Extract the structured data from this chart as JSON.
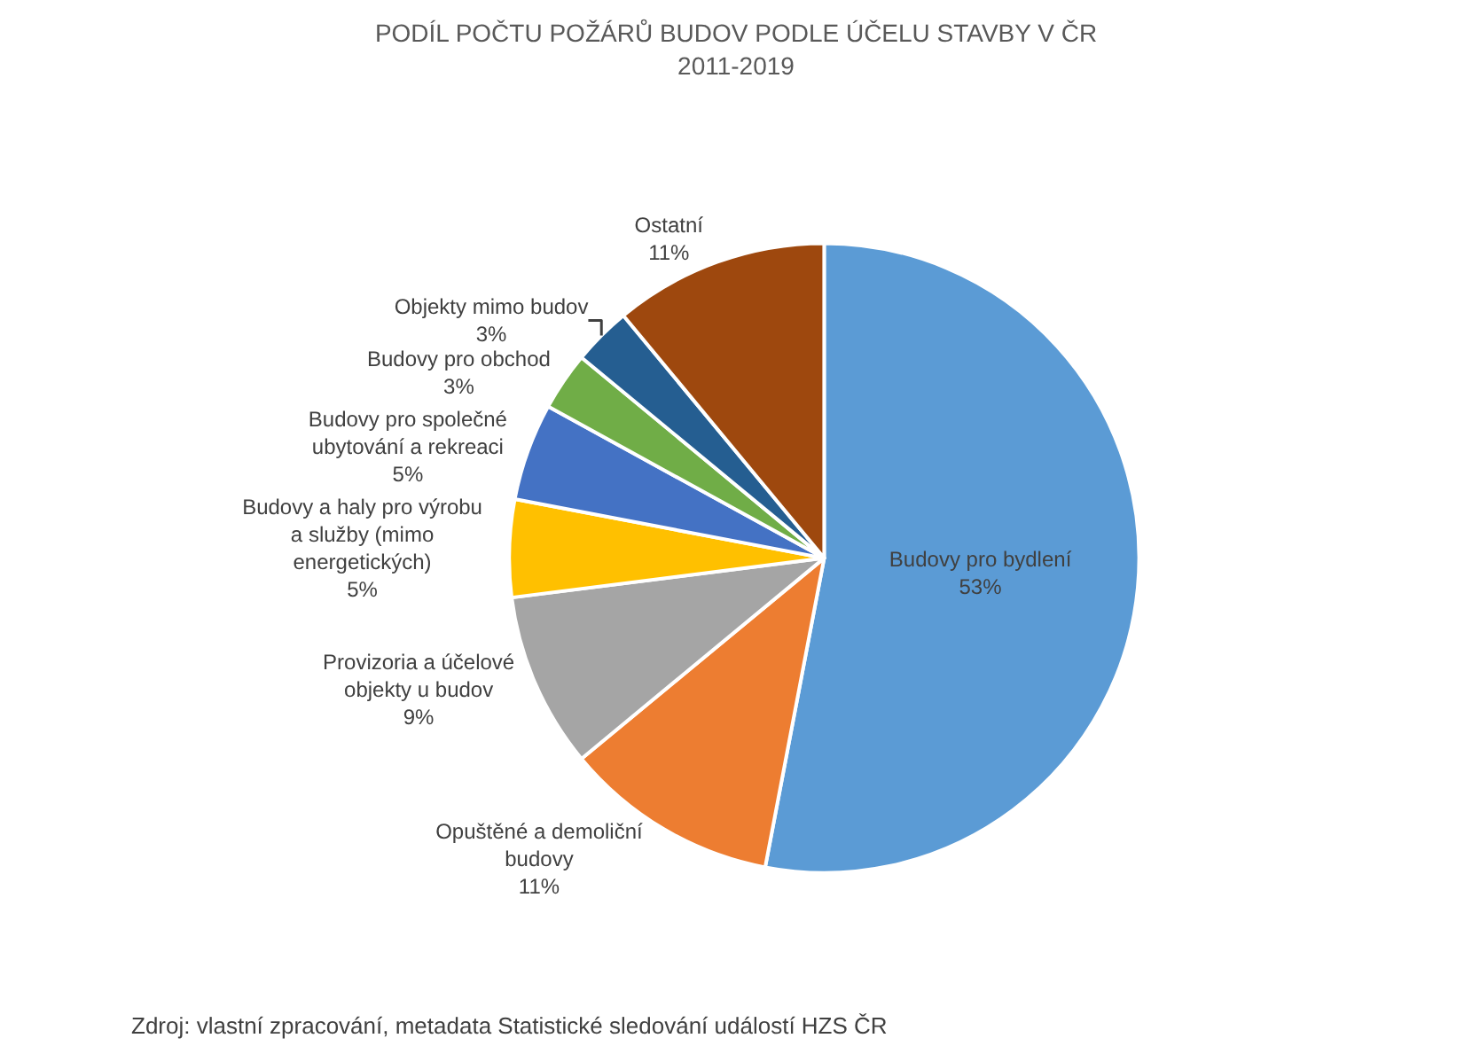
{
  "chart_data": {
    "type": "pie",
    "title": "PODÍL POČTU POŽÁRŮ BUDOV PODLE ÚČELU STAVBY V ČR",
    "subtitle": "2011-2019",
    "categories": [
      "Budovy pro bydlení",
      "Opuštěné a demoliční budovy",
      "Provizoria a účelové objekty u budov",
      "Budovy a haly pro výrobu a služby (mimo energetických)",
      "Budovy pro společné ubytování a rekreaci",
      "Budovy pro obchod",
      "Objekty mimo budov",
      "Ostatní"
    ],
    "values": [
      53,
      11,
      9,
      5,
      5,
      3,
      3,
      11
    ],
    "value_labels": [
      "53%",
      "11%",
      "9%",
      "5%",
      "5%",
      "3%",
      "3%",
      "11%"
    ],
    "colors": [
      "#5b9bd5",
      "#ed7d31",
      "#a5a5a5",
      "#ffc000",
      "#4472c4",
      "#70ad47",
      "#255e91",
      "#9e480e"
    ],
    "legend": false,
    "annotations": [
      "Zdroj: vlastní zpracování, metadata Statistické sledování událostí HZS ČR"
    ]
  }
}
